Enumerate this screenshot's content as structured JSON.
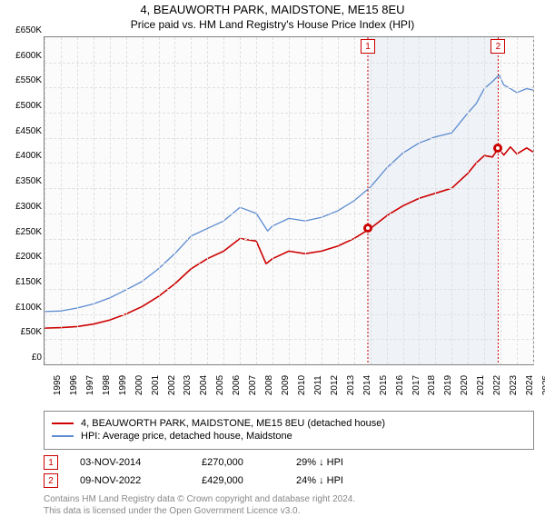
{
  "titles": {
    "line1": "4, BEAUWORTH PARK, MAIDSTONE, ME15 8EU",
    "line2": "Price paid vs. HM Land Registry's House Price Index (HPI)"
  },
  "chart": {
    "type": "line",
    "background_color": "#fbfbfb",
    "grid_color": "#e0e0e0",
    "ylim": [
      0,
      650000
    ],
    "ytick_step": 50000,
    "ytick_labels": [
      "£0",
      "£50K",
      "£100K",
      "£150K",
      "£200K",
      "£250K",
      "£300K",
      "£350K",
      "£400K",
      "£450K",
      "£500K",
      "£550K",
      "£600K",
      "£650K"
    ],
    "xrange_years": [
      1995,
      2025
    ],
    "xtick_years": [
      1995,
      1996,
      1997,
      1998,
      1999,
      2000,
      2001,
      2002,
      2003,
      2004,
      2005,
      2006,
      2007,
      2008,
      2009,
      2010,
      2011,
      2012,
      2013,
      2014,
      2015,
      2016,
      2017,
      2018,
      2019,
      2020,
      2021,
      2022,
      2023,
      2024,
      2025
    ],
    "series": [
      {
        "key": "price_paid",
        "color": "#cc0000",
        "width": 1.6,
        "points": [
          [
            1995,
            72000
          ],
          [
            1996,
            73000
          ],
          [
            1997,
            75000
          ],
          [
            1998,
            80000
          ],
          [
            1999,
            88000
          ],
          [
            2000,
            100000
          ],
          [
            2001,
            115000
          ],
          [
            2002,
            135000
          ],
          [
            2003,
            160000
          ],
          [
            2004,
            190000
          ],
          [
            2005,
            210000
          ],
          [
            2006,
            225000
          ],
          [
            2007,
            250000
          ],
          [
            2008,
            245000
          ],
          [
            2008.6,
            200000
          ],
          [
            2009,
            210000
          ],
          [
            2010,
            225000
          ],
          [
            2011,
            220000
          ],
          [
            2012,
            225000
          ],
          [
            2013,
            235000
          ],
          [
            2014,
            250000
          ],
          [
            2015,
            270000
          ],
          [
            2016,
            295000
          ],
          [
            2017,
            315000
          ],
          [
            2018,
            330000
          ],
          [
            2019,
            340000
          ],
          [
            2020,
            350000
          ],
          [
            2021,
            380000
          ],
          [
            2021.5,
            400000
          ],
          [
            2022,
            415000
          ],
          [
            2022.5,
            412000
          ],
          [
            2022.85,
            429000
          ],
          [
            2023.2,
            416000
          ],
          [
            2023.6,
            432000
          ],
          [
            2024,
            418000
          ],
          [
            2024.6,
            430000
          ],
          [
            2025,
            422000
          ]
        ]
      },
      {
        "key": "hpi",
        "color": "#5b8bd0",
        "width": 1.3,
        "points": [
          [
            1995,
            105000
          ],
          [
            1996,
            106000
          ],
          [
            1997,
            112000
          ],
          [
            1998,
            120000
          ],
          [
            1999,
            132000
          ],
          [
            2000,
            148000
          ],
          [
            2001,
            165000
          ],
          [
            2002,
            190000
          ],
          [
            2003,
            220000
          ],
          [
            2004,
            255000
          ],
          [
            2005,
            270000
          ],
          [
            2006,
            285000
          ],
          [
            2007,
            312000
          ],
          [
            2008,
            300000
          ],
          [
            2008.7,
            265000
          ],
          [
            2009,
            275000
          ],
          [
            2010,
            290000
          ],
          [
            2011,
            285000
          ],
          [
            2012,
            292000
          ],
          [
            2013,
            305000
          ],
          [
            2014,
            325000
          ],
          [
            2015,
            352000
          ],
          [
            2016,
            390000
          ],
          [
            2017,
            420000
          ],
          [
            2018,
            440000
          ],
          [
            2019,
            452000
          ],
          [
            2020,
            460000
          ],
          [
            2021,
            500000
          ],
          [
            2021.5,
            518000
          ],
          [
            2022,
            548000
          ],
          [
            2022.5,
            562000
          ],
          [
            2022.9,
            575000
          ],
          [
            2023.2,
            555000
          ],
          [
            2023.6,
            548000
          ],
          [
            2024,
            540000
          ],
          [
            2024.6,
            548000
          ],
          [
            2025,
            545000
          ]
        ]
      }
    ],
    "markers": [
      {
        "n": "1",
        "year": 2014.85,
        "price": 270000
      },
      {
        "n": "2",
        "year": 2022.85,
        "price": 429000
      }
    ],
    "marker_band_color": "#e8ecf5",
    "marker_line_color": "#cc0000"
  },
  "legend": {
    "items": [
      {
        "color": "#cc0000",
        "label": "4, BEAUWORTH PARK, MAIDSTONE, ME15 8EU (detached house)"
      },
      {
        "color": "#5b8bd0",
        "label": "HPI: Average price, detached house, Maidstone"
      }
    ]
  },
  "transactions": [
    {
      "n": "1",
      "date": "03-NOV-2014",
      "price": "£270,000",
      "delta": "29% ↓ HPI"
    },
    {
      "n": "2",
      "date": "09-NOV-2022",
      "price": "£429,000",
      "delta": "24% ↓ HPI"
    }
  ],
  "footer": {
    "line1": "Contains HM Land Registry data © Crown copyright and database right 2024.",
    "line2": "This data is licensed under the Open Government Licence v3.0."
  }
}
